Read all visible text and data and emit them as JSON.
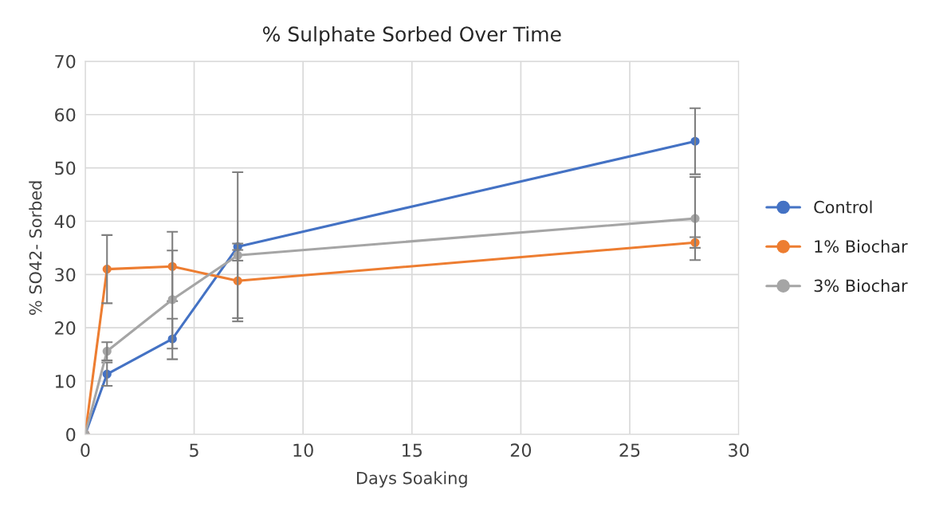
{
  "chart_data": {
    "type": "line",
    "title": "% Sulphate Sorbed Over Time",
    "xlabel": "Days Soaking",
    "ylabel": "% SO42- Sorbed",
    "x": [
      0,
      1,
      4,
      7,
      28
    ],
    "series": [
      {
        "name": "Control",
        "color": "#4472c4",
        "values": [
          0,
          11.3,
          17.9,
          35.2,
          55
        ],
        "errors": [
          null,
          2.2,
          3.8,
          14,
          6.2
        ]
      },
      {
        "name": "1% Biochar",
        "color": "#ed7d31",
        "values": [
          0,
          31,
          31.5,
          28.8,
          36
        ],
        "errors": [
          null,
          6.4,
          6.5,
          7,
          1
        ]
      },
      {
        "name": "3% Biochar",
        "color": "#a5a5a5",
        "values": [
          0,
          15.6,
          25.3,
          33.6,
          40.5
        ],
        "errors": [
          null,
          1.7,
          9.2,
          1,
          7.8
        ]
      }
    ],
    "xlim": [
      0,
      30
    ],
    "xticks": [
      0,
      5,
      10,
      15,
      20,
      25,
      30
    ],
    "ylim": [
      0,
      70
    ],
    "yticks": [
      0,
      10,
      20,
      30,
      40,
      50,
      60,
      70
    ],
    "grid": true,
    "legend": "right",
    "marker": "circle",
    "line_style": "solid"
  }
}
